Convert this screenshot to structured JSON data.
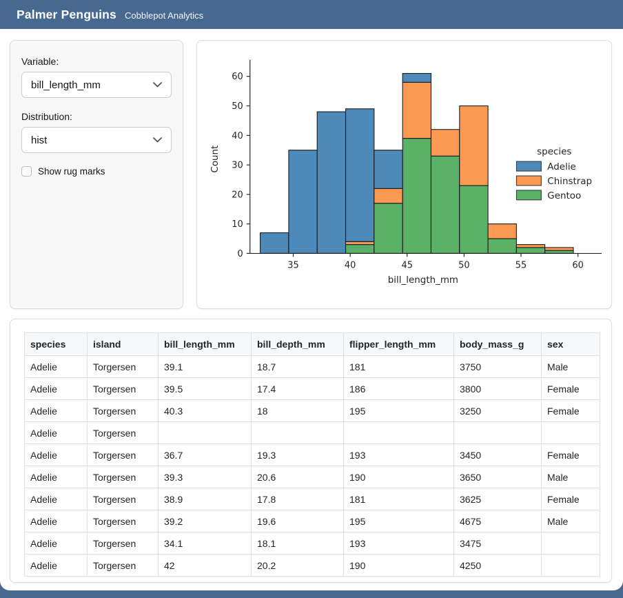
{
  "navbar": {
    "title": "Palmer Penguins",
    "subtitle": "Cobblepot Analytics"
  },
  "sidebar": {
    "variable_label": "Variable:",
    "variable_value": "bill_length_mm",
    "distribution_label": "Distribution:",
    "distribution_value": "hist",
    "rug_label": "Show rug marks",
    "rug_checked": false
  },
  "colors": {
    "navbar": "#48698f",
    "adelie": "#4e8ab9",
    "chinstrap": "#fb9a52",
    "gentoo": "#5bb168",
    "bar_edge": "#1a1a1a"
  },
  "chart_data": {
    "type": "bar",
    "subtype": "stacked-histogram",
    "title": "",
    "xlabel": "bill_length_mm",
    "ylabel": "Count",
    "bin_edges": [
      32.1,
      34.6,
      37.1,
      39.6,
      42.1,
      44.6,
      47.1,
      49.6,
      52.1,
      54.6,
      57.1,
      59.6
    ],
    "series": [
      {
        "name": "Adelie",
        "color": "#4e8ab9",
        "values": [
          7,
          35,
          48,
          45,
          13,
          3,
          0,
          0,
          0,
          0,
          0
        ]
      },
      {
        "name": "Chinstrap",
        "color": "#fb9a52",
        "values": [
          0,
          0,
          0,
          1,
          5,
          19,
          9,
          27,
          5,
          1,
          1
        ]
      },
      {
        "name": "Gentoo",
        "color": "#5bb168",
        "values": [
          0,
          0,
          0,
          3,
          17,
          39,
          33,
          23,
          5,
          2,
          1
        ]
      }
    ],
    "totals_per_bin": [
      7,
      35,
      48,
      49,
      35,
      61,
      42,
      50,
      10,
      3,
      2
    ],
    "stack_bottom_to_top": [
      "Gentoo",
      "Chinstrap",
      "Adelie"
    ],
    "x_ticks": [
      35,
      40,
      45,
      50,
      55,
      60
    ],
    "y_ticks": [
      0,
      10,
      20,
      30,
      40,
      50,
      60
    ],
    "xlim": [
      31.2,
      61.6
    ],
    "ylim": [
      0,
      63.5
    ],
    "grid": false,
    "legend": {
      "title": "species",
      "position": "right"
    }
  },
  "table": {
    "columns": [
      "species",
      "island",
      "bill_length_mm",
      "bill_depth_mm",
      "flipper_length_mm",
      "body_mass_g",
      "sex"
    ],
    "rows": [
      [
        "Adelie",
        "Torgersen",
        "39.1",
        "18.7",
        "181",
        "3750",
        "Male"
      ],
      [
        "Adelie",
        "Torgersen",
        "39.5",
        "17.4",
        "186",
        "3800",
        "Female"
      ],
      [
        "Adelie",
        "Torgersen",
        "40.3",
        "18",
        "195",
        "3250",
        "Female"
      ],
      [
        "Adelie",
        "Torgersen",
        "",
        "",
        "",
        "",
        ""
      ],
      [
        "Adelie",
        "Torgersen",
        "36.7",
        "19.3",
        "193",
        "3450",
        "Female"
      ],
      [
        "Adelie",
        "Torgersen",
        "39.3",
        "20.6",
        "190",
        "3650",
        "Male"
      ],
      [
        "Adelie",
        "Torgersen",
        "38.9",
        "17.8",
        "181",
        "3625",
        "Female"
      ],
      [
        "Adelie",
        "Torgersen",
        "39.2",
        "19.6",
        "195",
        "4675",
        "Male"
      ],
      [
        "Adelie",
        "Torgersen",
        "34.1",
        "18.1",
        "193",
        "3475",
        ""
      ],
      [
        "Adelie",
        "Torgersen",
        "42",
        "20.2",
        "190",
        "4250",
        ""
      ]
    ]
  }
}
